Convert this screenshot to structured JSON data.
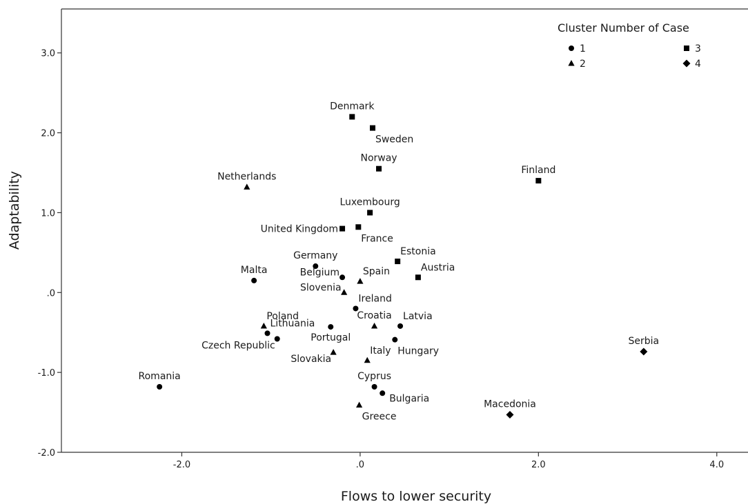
{
  "chart_data": {
    "type": "scatter",
    "title": "",
    "xlabel": "Flows to lower security",
    "ylabel": "Adaptability",
    "xlim": [
      -3.35,
      4.35
    ],
    "ylim": [
      -2.0,
      3.55
    ],
    "x_ticks": [
      -2.0,
      0.0,
      2.0,
      4.0
    ],
    "x_tick_labels": [
      "-2.0",
      ".0",
      "2.0",
      "4.0"
    ],
    "y_ticks": [
      -2.0,
      -1.0,
      0.0,
      1.0,
      2.0,
      3.0
    ],
    "y_tick_labels": [
      "-2.0",
      "-1.0",
      ".0",
      "1.0",
      "2.0",
      "3.0"
    ],
    "grid": false,
    "legend": {
      "title": "Cluster Number of Case",
      "placement": "top-right",
      "entries": [
        {
          "label": "1",
          "marker": "circle"
        },
        {
          "label": "2",
          "marker": "triangle"
        },
        {
          "label": "3",
          "marker": "square"
        },
        {
          "label": "4",
          "marker": "diamond"
        }
      ]
    },
    "points": [
      {
        "label": "Denmark",
        "x": -0.09,
        "y": 2.2,
        "cluster": 3,
        "label_pos": "above"
      },
      {
        "label": "Sweden",
        "x": 0.14,
        "y": 2.06,
        "cluster": 3,
        "label_pos": "below-right"
      },
      {
        "label": "Norway",
        "x": 0.21,
        "y": 1.55,
        "cluster": 3,
        "label_pos": "above"
      },
      {
        "label": "Finland",
        "x": 2.0,
        "y": 1.4,
        "cluster": 3,
        "label_pos": "above"
      },
      {
        "label": "Luxembourg",
        "x": 0.11,
        "y": 1.0,
        "cluster": 3,
        "label_pos": "above"
      },
      {
        "label": "United Kingdom",
        "x": -0.2,
        "y": 0.8,
        "cluster": 3,
        "label_pos": "left"
      },
      {
        "label": "France",
        "x": -0.02,
        "y": 0.82,
        "cluster": 3,
        "label_pos": "below-right"
      },
      {
        "label": "Estonia",
        "x": 0.42,
        "y": 0.39,
        "cluster": 3,
        "label_pos": "above-right"
      },
      {
        "label": "Austria",
        "x": 0.65,
        "y": 0.19,
        "cluster": 3,
        "label_pos": "above-right"
      },
      {
        "label": "Netherlands",
        "x": -1.27,
        "y": 1.32,
        "cluster": 2,
        "label_pos": "above"
      },
      {
        "label": "Malta",
        "x": -1.19,
        "y": 0.15,
        "cluster": 1,
        "label_pos": "above"
      },
      {
        "label": "Germany",
        "x": -0.5,
        "y": 0.33,
        "cluster": 1,
        "label_pos": "above"
      },
      {
        "label": "Spain",
        "x": 0.0,
        "y": 0.14,
        "cluster": 2,
        "label_pos": "above-right"
      },
      {
        "label": "Belgium",
        "x": -0.2,
        "y": 0.19,
        "cluster": 1,
        "label_pos": "below-left"
      },
      {
        "label": "Slovenia",
        "x": -0.18,
        "y": 0.0,
        "cluster": 2,
        "label_pos": "below-left"
      },
      {
        "label": "Ireland",
        "x": -0.05,
        "y": -0.2,
        "cluster": 1,
        "label_pos": "above-right"
      },
      {
        "label": "Croatia",
        "x": 0.16,
        "y": -0.42,
        "cluster": 2,
        "label_pos": "above"
      },
      {
        "label": "Latvia",
        "x": 0.45,
        "y": -0.42,
        "cluster": 1,
        "label_pos": "above-right"
      },
      {
        "label": "Poland",
        "x": -1.08,
        "y": -0.42,
        "cluster": 2,
        "label_pos": "above-right"
      },
      {
        "label": "Lithuania",
        "x": -1.04,
        "y": -0.51,
        "cluster": 1,
        "label_pos": "above-right"
      },
      {
        "label": "Czech Republic",
        "x": -0.93,
        "y": -0.58,
        "cluster": 1,
        "label_pos": "left-below"
      },
      {
        "label": "Portugal",
        "x": -0.33,
        "y": -0.43,
        "cluster": 1,
        "label_pos": "below"
      },
      {
        "label": "Slovakia",
        "x": -0.3,
        "y": -0.75,
        "cluster": 2,
        "label_pos": "left-below"
      },
      {
        "label": "Hungary",
        "x": 0.39,
        "y": -0.59,
        "cluster": 1,
        "label_pos": "below-right"
      },
      {
        "label": "Italy",
        "x": 0.08,
        "y": -0.85,
        "cluster": 2,
        "label_pos": "above-right"
      },
      {
        "label": "Cyprus",
        "x": 0.16,
        "y": -1.18,
        "cluster": 1,
        "label_pos": "above"
      },
      {
        "label": "Bulgaria",
        "x": 0.25,
        "y": -1.26,
        "cluster": 1,
        "label_pos": "right-below"
      },
      {
        "label": "Greece",
        "x": -0.01,
        "y": -1.41,
        "cluster": 2,
        "label_pos": "below-right"
      },
      {
        "label": "Romania",
        "x": -2.25,
        "y": -1.18,
        "cluster": 1,
        "label_pos": "above"
      },
      {
        "label": "Serbia",
        "x": 3.18,
        "y": -0.74,
        "cluster": 4,
        "label_pos": "above"
      },
      {
        "label": "Macedonia",
        "x": 1.68,
        "y": -1.53,
        "cluster": 4,
        "label_pos": "above"
      }
    ]
  }
}
